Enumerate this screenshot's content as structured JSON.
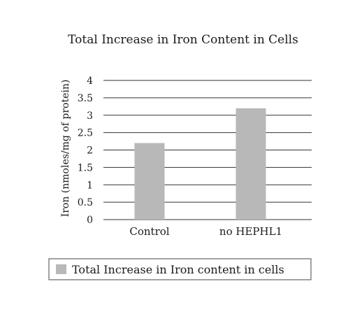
{
  "chart_data": {
    "type": "bar",
    "title": "Total Increase in Iron Content in Cells",
    "xlabel": "",
    "ylabel": "Iron (nmoles/mg of protein)",
    "categories": [
      "Control",
      "no HEPHL1"
    ],
    "series": [
      {
        "name": "Total Increase in Iron content in cells",
        "values": [
          2.2,
          3.2
        ]
      }
    ],
    "ylim": [
      0,
      3.5
    ],
    "yticks": [
      "0",
      "0.5",
      "1",
      "1.5",
      "2",
      "2.5",
      "3",
      "3.5",
      "4"
    ],
    "ytick_values": [
      0,
      0.5,
      1,
      1.5,
      2,
      2.5,
      3,
      3.5,
      4
    ],
    "grid": true,
    "legend_position": "bottom",
    "colors": {
      "bar": "#b8b8b8",
      "grid": "#333333",
      "text": "#1a1a1a",
      "legend_border": "#444444"
    }
  }
}
